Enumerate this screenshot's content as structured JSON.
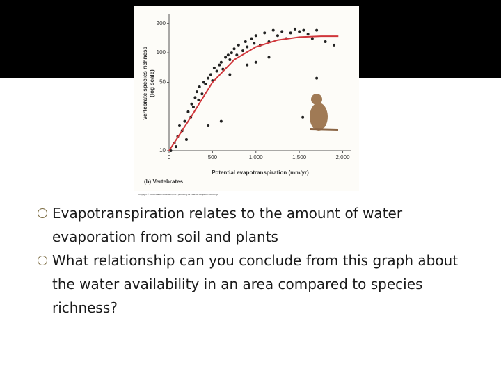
{
  "chart_data": {
    "type": "scatter",
    "caption": "(b) Vertebrates",
    "copyright": "Copyright © 2008 Pearson Education, Inc., publishing as Pearson Benjamin Cummings",
    "y_label": [
      "Vertebrate species richness",
      "(log scale)"
    ],
    "x_label": "Potential evapotranspiration (mm/yr)",
    "yscale": "log",
    "xlim": [
      0,
      2100
    ],
    "ylim": [
      10,
      250
    ],
    "xticks": [
      0,
      500,
      {
        "value": 1000,
        "label": "1,000"
      },
      {
        "value": 1500,
        "label": "1,500"
      },
      {
        "value": 2000,
        "label": "2,000"
      }
    ],
    "yticks": [
      10,
      50,
      100,
      200
    ],
    "color": "#222222",
    "x": [
      20,
      60,
      80,
      100,
      120,
      150,
      180,
      200,
      220,
      250,
      260,
      280,
      300,
      320,
      340,
      350,
      380,
      400,
      420,
      450,
      480,
      500,
      520,
      550,
      580,
      600,
      620,
      650,
      680,
      700,
      720,
      750,
      780,
      800,
      850,
      880,
      900,
      950,
      980,
      1000,
      1050,
      1100,
      1150,
      1200,
      1250,
      1300,
      1350,
      1400,
      1450,
      1500,
      1550,
      1600,
      1650,
      1700,
      1800,
      1900,
      700,
      900,
      1700,
      1540,
      450,
      600,
      1000,
      1150
    ],
    "values": [
      10,
      12,
      11,
      14,
      18,
      16,
      20,
      13,
      25,
      22,
      30,
      28,
      35,
      40,
      33,
      45,
      38,
      50,
      48,
      55,
      60,
      52,
      70,
      65,
      75,
      80,
      68,
      90,
      95,
      85,
      100,
      110,
      95,
      120,
      105,
      130,
      115,
      140,
      125,
      150,
      120,
      160,
      130,
      170,
      150,
      165,
      140,
      160,
      175,
      165,
      170,
      155,
      140,
      170,
      130,
      120,
      60,
      75,
      55,
      22,
      18,
      20,
      80,
      90
    ],
    "curve": {
      "color": "#d0363b",
      "x": [
        0,
        250,
        500,
        750,
        1000,
        1250,
        1500,
        1750,
        1950
      ],
      "values": [
        10,
        22,
        50,
        85,
        115,
        135,
        145,
        148,
        148
      ]
    }
  },
  "bullets": [
    "Evapotranspiration relates to the amount of water evaporation from soil and plants",
    "What relationship can you conclude from this graph about the water availability in an area compared to species richness?"
  ]
}
